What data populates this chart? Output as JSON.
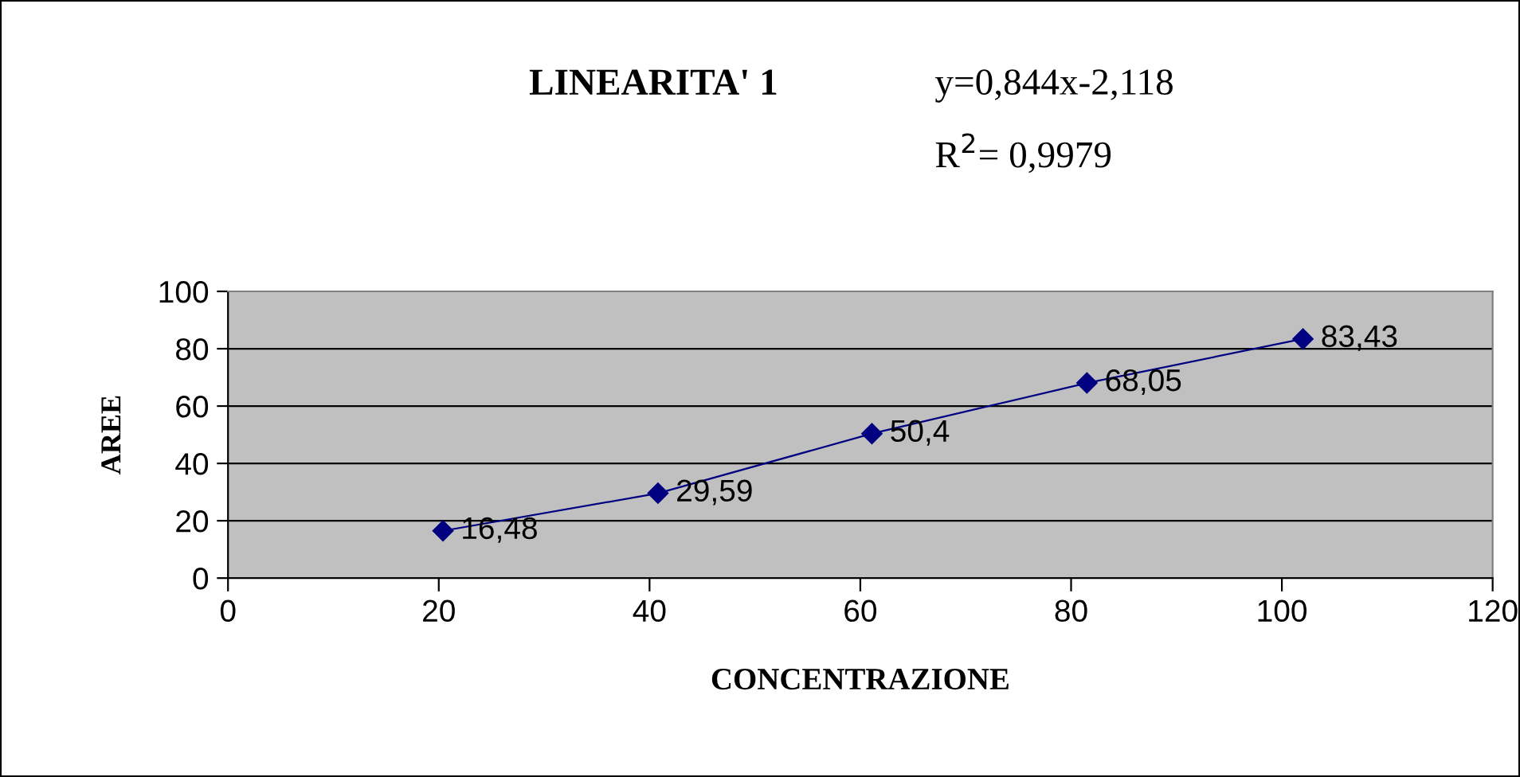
{
  "chart_data": {
    "type": "line",
    "title": "LINEARITA' 1",
    "xlabel": "CONCENTRAZIONE",
    "ylabel": "AREE",
    "annotations": [
      "y=0,844x-2,118",
      "R$^{2}$= 0,9979"
    ],
    "x": [
      20.4,
      40.8,
      61.1,
      81.5,
      102
    ],
    "series": [
      {
        "color": "#000080",
        "values": [
          16.48,
          29.59,
          50.4,
          68.05,
          83.43
        ],
        "value_labels": [
          "16,48",
          "29,59",
          "50,4",
          "68,05",
          "83,43"
        ]
      }
    ],
    "xlim": [
      0,
      120
    ],
    "xticks": [
      0,
      20,
      40,
      60,
      80,
      100,
      120
    ],
    "ylim": [
      0,
      100
    ],
    "yticks": [
      0,
      20,
      40,
      60,
      80,
      100
    ],
    "grid": "y",
    "marker": "diamond",
    "line_style": "solid",
    "legend": false
  }
}
